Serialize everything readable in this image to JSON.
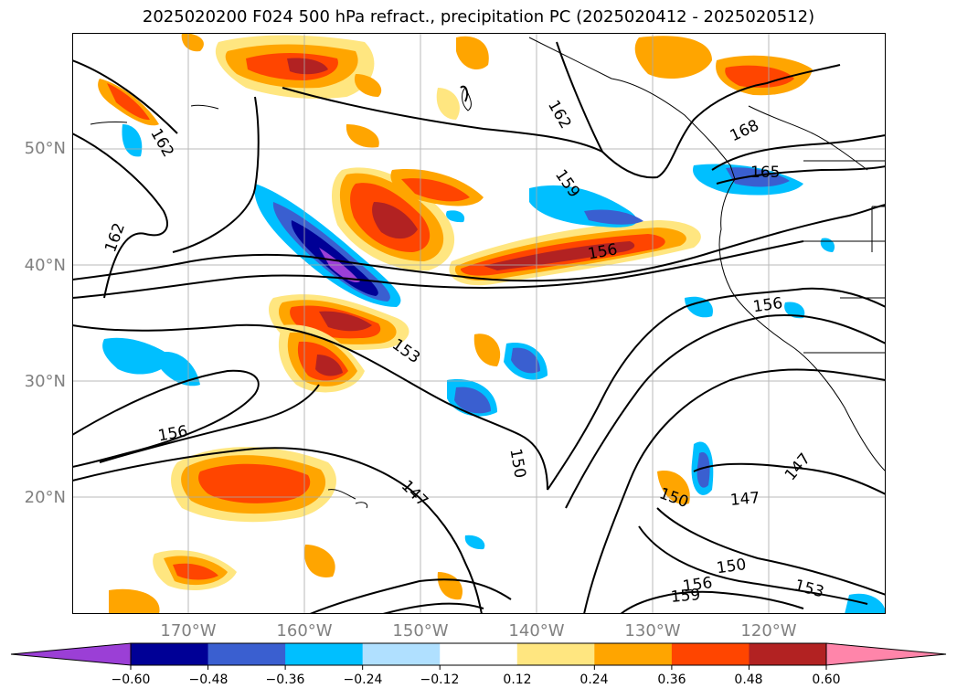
{
  "title": "2025020200 F024 500 hPa refract., precipitation PC (2025020412 - 2025020512)",
  "axes": {
    "lat_labels": [
      "50°N",
      "40°N",
      "30°N",
      "20°N"
    ],
    "lon_labels": [
      "170°W",
      "160°W",
      "150°W",
      "140°W",
      "130°W",
      "120°W"
    ]
  },
  "contour_labels": [
    "162",
    "162",
    "162",
    "159",
    "168",
    "165",
    "156",
    "156",
    "153",
    "156",
    "150",
    "147",
    "150",
    "147",
    "147",
    "150",
    "156",
    "153",
    "159"
  ],
  "colorbar": {
    "tick_labels": [
      "−0.60",
      "−0.48",
      "−0.36",
      "−0.24",
      "−0.12",
      "0.12",
      "0.24",
      "0.36",
      "0.48",
      "0.60"
    ],
    "colors": [
      "#9b3fd6",
      "#000096",
      "#3a5fd0",
      "#00bfff",
      "#b0e0ff",
      "#ffffff",
      "#ffe680",
      "#ffa500",
      "#ff4500",
      "#b22222",
      "#ff85aa"
    ]
  }
}
